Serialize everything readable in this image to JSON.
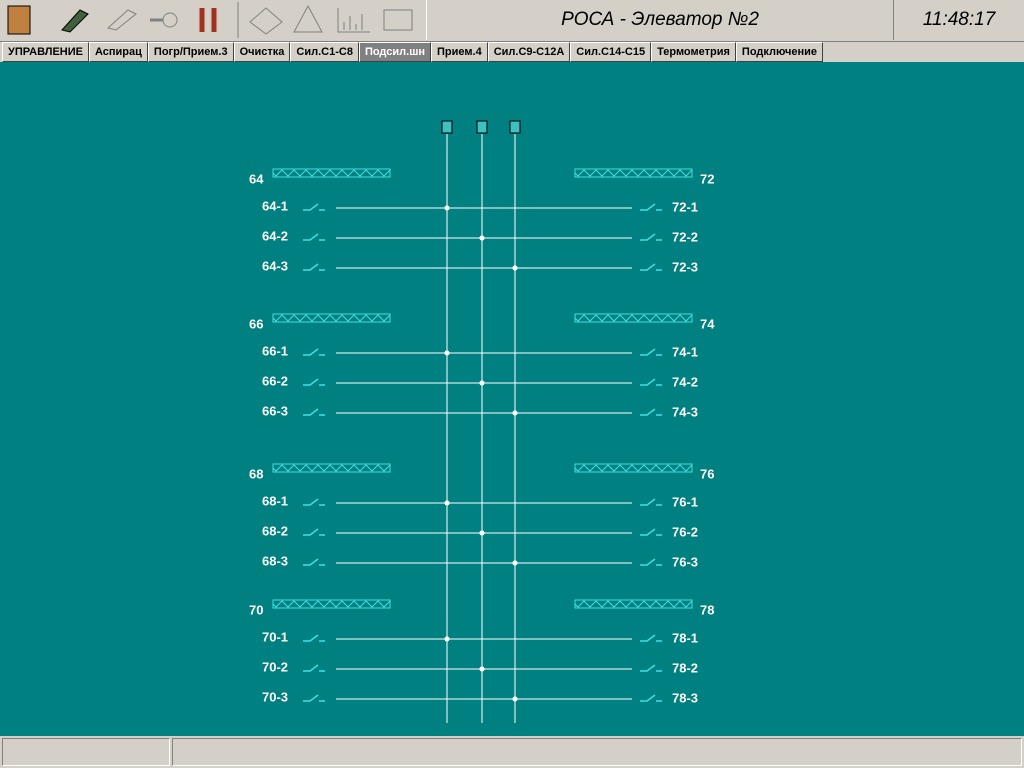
{
  "header": {
    "title": "РОСА - Элеватор №2",
    "clock": "11:48:17"
  },
  "tabs": [
    "УПРАВЛЕНИЕ",
    "Аспирац",
    "Погр/Прием.3",
    "Очистка",
    "Сил.С1-С8",
    "Подсил.шн",
    "Прием.4",
    "Сил.С9-С12А",
    "Сил.С14-С15",
    "Термометрия",
    "Подключение"
  ],
  "left_groups": [
    {
      "label": "64",
      "switches": [
        "64-1",
        "64-2",
        "64-3"
      ]
    },
    {
      "label": "66",
      "switches": [
        "66-1",
        "66-2",
        "66-3"
      ]
    },
    {
      "label": "68",
      "switches": [
        "68-1",
        "68-2",
        "68-3"
      ]
    },
    {
      "label": "70",
      "switches": [
        "70-1",
        "70-2",
        "70-3"
      ]
    }
  ],
  "right_groups": [
    {
      "label": "72",
      "switches": [
        "72-1",
        "72-2",
        "72-3"
      ]
    },
    {
      "label": "74",
      "switches": [
        "74-1",
        "74-2",
        "74-3"
      ]
    },
    {
      "label": "76",
      "switches": [
        "76-1",
        "76-2",
        "76-3"
      ]
    },
    {
      "label": "78",
      "switches": [
        "78-1",
        "78-2",
        "78-3"
      ]
    }
  ]
}
